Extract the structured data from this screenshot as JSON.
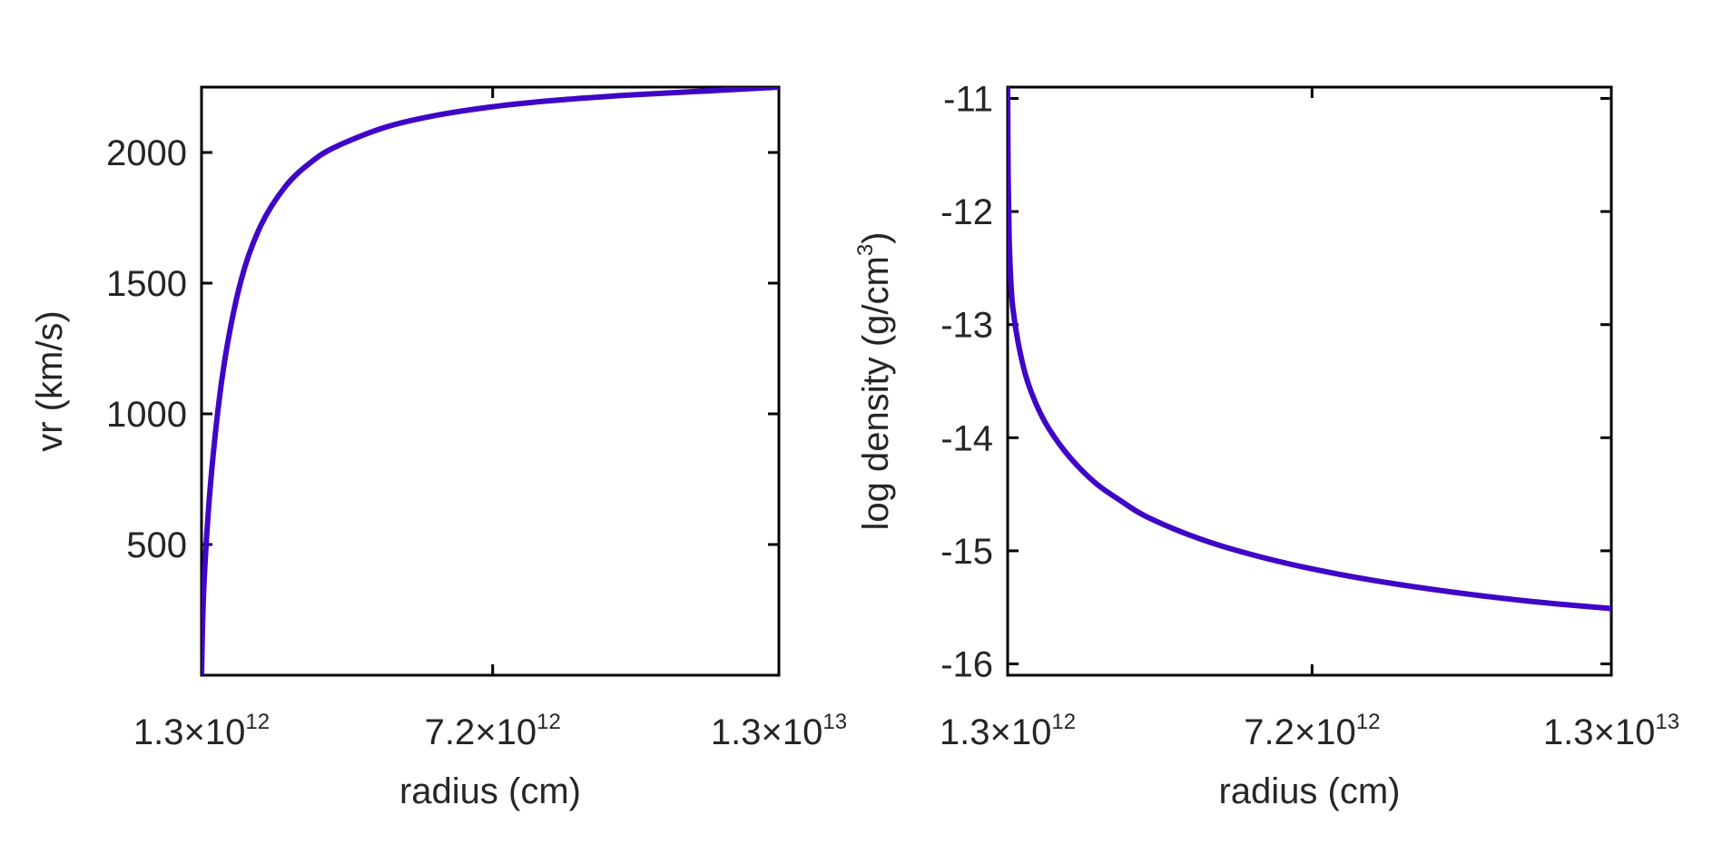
{
  "chart_data": [
    {
      "type": "line",
      "xlabel": "radius (cm)",
      "ylabel": "vr (km/s)",
      "xlim": [
        1300000000000.0,
        13000000000000.0
      ],
      "ylim": [
        0,
        2250
      ],
      "xticks": [
        1300000000000.0,
        7200000000000.0,
        13000000000000.0
      ],
      "xtick_labels": [
        {
          "mantissa": "1.3",
          "times": "×10",
          "exponent": "12"
        },
        {
          "mantissa": "7.2",
          "times": "×10",
          "exponent": "12"
        },
        {
          "mantissa": "1.3",
          "times": "×10",
          "exponent": "13"
        }
      ],
      "yticks": [
        500,
        1000,
        1500,
        2000
      ],
      "ytick_labels": [
        "500",
        "1000",
        "1500",
        "2000"
      ],
      "grid": false,
      "line_color": "#3F06C8",
      "series": [
        {
          "x": [
            1300000000000.0,
            1350000000000.0,
            1500000000000.0,
            1750000000000.0,
            2100000000000.0,
            2500000000000.0,
            3000000000000.0,
            3500000000000.0,
            4000000000000.0,
            5000000000000.0,
            6000000000000.0,
            7200000000000.0,
            8500000000000.0,
            10000000000000.0,
            11500000000000.0,
            13000000000000.0
          ],
          "y": [
            0,
            350,
            770,
            1180,
            1510,
            1720,
            1870,
            1960,
            2020,
            2095,
            2140,
            2175,
            2200,
            2220,
            2235,
            2250
          ]
        }
      ]
    },
    {
      "type": "line",
      "xlabel": "radius (cm)",
      "ylabel_text": "log density (g/cm",
      "ylabel_sup": "3",
      "ylabel_close": ")",
      "xlim": [
        1300000000000.0,
        13000000000000.0
      ],
      "ylim": [
        -16.1,
        -10.9
      ],
      "xticks": [
        1300000000000.0,
        7200000000000.0,
        13000000000000.0
      ],
      "xtick_labels": [
        {
          "mantissa": "1.3",
          "times": "×10",
          "exponent": "12"
        },
        {
          "mantissa": "7.2",
          "times": "×10",
          "exponent": "12"
        },
        {
          "mantissa": "1.3",
          "times": "×10",
          "exponent": "13"
        }
      ],
      "yticks": [
        -16,
        -15,
        -14,
        -13,
        -12,
        -11
      ],
      "ytick_labels": [
        "-16",
        "-15",
        "-14",
        "-13",
        "-12",
        "-11"
      ],
      "grid": false,
      "line_color": "#3F06C8",
      "series": [
        {
          "x": [
            1300000000000.0,
            1310000000000.0,
            1330000000000.0,
            1360000000000.0,
            1400000000000.0,
            1500000000000.0,
            1650000000000.0,
            1850000000000.0,
            2100000000000.0,
            2500000000000.0,
            3000000000000.0,
            3500000000000.0,
            4000000000000.0,
            5000000000000.0,
            6000000000000.0,
            7200000000000.0,
            8500000000000.0,
            10000000000000.0,
            11500000000000.0,
            13000000000000.0
          ],
          "y": [
            -10.9,
            -11.7,
            -12.25,
            -12.6,
            -12.85,
            -13.15,
            -13.45,
            -13.7,
            -13.92,
            -14.17,
            -14.4,
            -14.56,
            -14.7,
            -14.89,
            -15.03,
            -15.16,
            -15.27,
            -15.37,
            -15.45,
            -15.51
          ]
        }
      ]
    }
  ]
}
